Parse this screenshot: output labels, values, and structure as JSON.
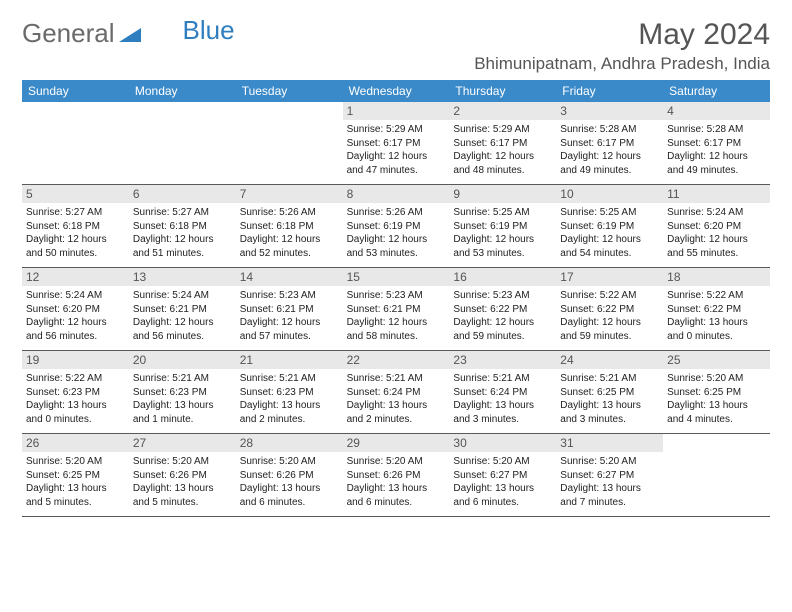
{
  "brand": {
    "part1": "General",
    "part2": "Blue"
  },
  "title": "May 2024",
  "location": "Bhimunipatnam, Andhra Pradesh, India",
  "days_of_week": [
    "Sunday",
    "Monday",
    "Tuesday",
    "Wednesday",
    "Thursday",
    "Friday",
    "Saturday"
  ],
  "colors": {
    "header_bar": "#3a8aca",
    "text_muted": "#555555",
    "day_bg": "#e8e8e8",
    "rule": "#5a5a5a"
  },
  "weeks": [
    [
      {
        "n": "",
        "empty": true
      },
      {
        "n": "",
        "empty": true
      },
      {
        "n": "",
        "empty": true
      },
      {
        "n": "1",
        "sr": "5:29 AM",
        "ss": "6:17 PM",
        "dl": "12 hours and 47 minutes."
      },
      {
        "n": "2",
        "sr": "5:29 AM",
        "ss": "6:17 PM",
        "dl": "12 hours and 48 minutes."
      },
      {
        "n": "3",
        "sr": "5:28 AM",
        "ss": "6:17 PM",
        "dl": "12 hours and 49 minutes."
      },
      {
        "n": "4",
        "sr": "5:28 AM",
        "ss": "6:17 PM",
        "dl": "12 hours and 49 minutes."
      }
    ],
    [
      {
        "n": "5",
        "sr": "5:27 AM",
        "ss": "6:18 PM",
        "dl": "12 hours and 50 minutes."
      },
      {
        "n": "6",
        "sr": "5:27 AM",
        "ss": "6:18 PM",
        "dl": "12 hours and 51 minutes."
      },
      {
        "n": "7",
        "sr": "5:26 AM",
        "ss": "6:18 PM",
        "dl": "12 hours and 52 minutes."
      },
      {
        "n": "8",
        "sr": "5:26 AM",
        "ss": "6:19 PM",
        "dl": "12 hours and 53 minutes."
      },
      {
        "n": "9",
        "sr": "5:25 AM",
        "ss": "6:19 PM",
        "dl": "12 hours and 53 minutes."
      },
      {
        "n": "10",
        "sr": "5:25 AM",
        "ss": "6:19 PM",
        "dl": "12 hours and 54 minutes."
      },
      {
        "n": "11",
        "sr": "5:24 AM",
        "ss": "6:20 PM",
        "dl": "12 hours and 55 minutes."
      }
    ],
    [
      {
        "n": "12",
        "sr": "5:24 AM",
        "ss": "6:20 PM",
        "dl": "12 hours and 56 minutes."
      },
      {
        "n": "13",
        "sr": "5:24 AM",
        "ss": "6:21 PM",
        "dl": "12 hours and 56 minutes."
      },
      {
        "n": "14",
        "sr": "5:23 AM",
        "ss": "6:21 PM",
        "dl": "12 hours and 57 minutes."
      },
      {
        "n": "15",
        "sr": "5:23 AM",
        "ss": "6:21 PM",
        "dl": "12 hours and 58 minutes."
      },
      {
        "n": "16",
        "sr": "5:23 AM",
        "ss": "6:22 PM",
        "dl": "12 hours and 59 minutes."
      },
      {
        "n": "17",
        "sr": "5:22 AM",
        "ss": "6:22 PM",
        "dl": "12 hours and 59 minutes."
      },
      {
        "n": "18",
        "sr": "5:22 AM",
        "ss": "6:22 PM",
        "dl": "13 hours and 0 minutes."
      }
    ],
    [
      {
        "n": "19",
        "sr": "5:22 AM",
        "ss": "6:23 PM",
        "dl": "13 hours and 0 minutes."
      },
      {
        "n": "20",
        "sr": "5:21 AM",
        "ss": "6:23 PM",
        "dl": "13 hours and 1 minute."
      },
      {
        "n": "21",
        "sr": "5:21 AM",
        "ss": "6:23 PM",
        "dl": "13 hours and 2 minutes."
      },
      {
        "n": "22",
        "sr": "5:21 AM",
        "ss": "6:24 PM",
        "dl": "13 hours and 2 minutes."
      },
      {
        "n": "23",
        "sr": "5:21 AM",
        "ss": "6:24 PM",
        "dl": "13 hours and 3 minutes."
      },
      {
        "n": "24",
        "sr": "5:21 AM",
        "ss": "6:25 PM",
        "dl": "13 hours and 3 minutes."
      },
      {
        "n": "25",
        "sr": "5:20 AM",
        "ss": "6:25 PM",
        "dl": "13 hours and 4 minutes."
      }
    ],
    [
      {
        "n": "26",
        "sr": "5:20 AM",
        "ss": "6:25 PM",
        "dl": "13 hours and 5 minutes."
      },
      {
        "n": "27",
        "sr": "5:20 AM",
        "ss": "6:26 PM",
        "dl": "13 hours and 5 minutes."
      },
      {
        "n": "28",
        "sr": "5:20 AM",
        "ss": "6:26 PM",
        "dl": "13 hours and 6 minutes."
      },
      {
        "n": "29",
        "sr": "5:20 AM",
        "ss": "6:26 PM",
        "dl": "13 hours and 6 minutes."
      },
      {
        "n": "30",
        "sr": "5:20 AM",
        "ss": "6:27 PM",
        "dl": "13 hours and 6 minutes."
      },
      {
        "n": "31",
        "sr": "5:20 AM",
        "ss": "6:27 PM",
        "dl": "13 hours and 7 minutes."
      },
      {
        "n": "",
        "empty": true
      }
    ]
  ],
  "labels": {
    "sunrise": "Sunrise:",
    "sunset": "Sunset:",
    "daylight": "Daylight:"
  }
}
